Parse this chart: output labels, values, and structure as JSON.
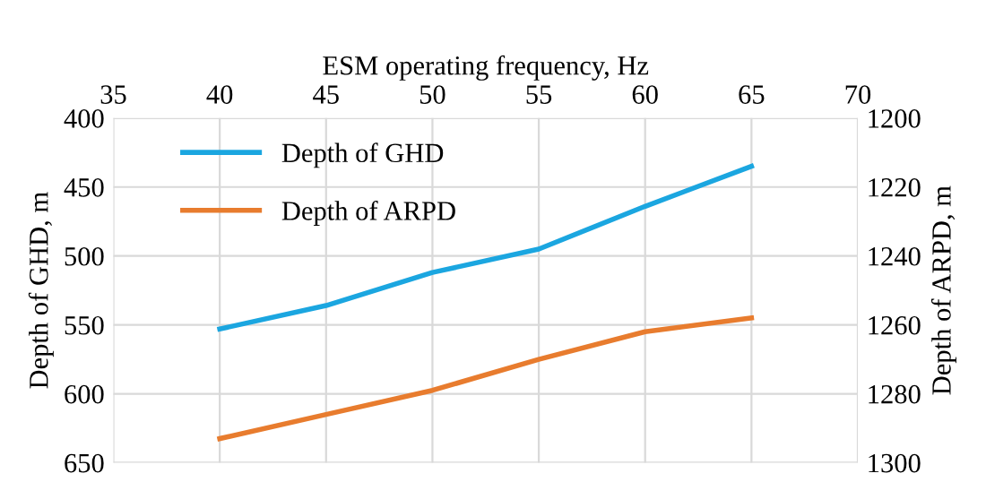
{
  "chart_data": {
    "type": "line",
    "xlabel": "ESM operating frequency, Hz",
    "ylabel": "Depth of GHD, m",
    "y2label": "Depth of ARPD, m",
    "x": [
      40,
      45,
      50,
      55,
      60,
      65
    ],
    "series": [
      {
        "name": "Depth of GHD",
        "color": "#1ba6e0",
        "values": [
          553,
          536,
          512,
          495,
          464,
          435
        ]
      },
      {
        "name": "Depth of ARPD",
        "color": "#e87c2e",
        "axis": "y2",
        "values": [
          1293,
          1286,
          1279,
          1270,
          1262,
          1258
        ]
      }
    ],
    "xlim": [
      35,
      70
    ],
    "xticks": [
      35,
      40,
      45,
      50,
      55,
      60,
      65,
      70
    ],
    "ylim": [
      650,
      400
    ],
    "yticks": [
      400,
      450,
      500,
      550,
      600,
      650
    ],
    "y2lim": [
      1300,
      1200
    ],
    "y2ticks": [
      1200,
      1220,
      1240,
      1260,
      1280,
      1300
    ],
    "grid": true,
    "legend": "top left",
    "marker": "none",
    "line_style": "solid"
  }
}
